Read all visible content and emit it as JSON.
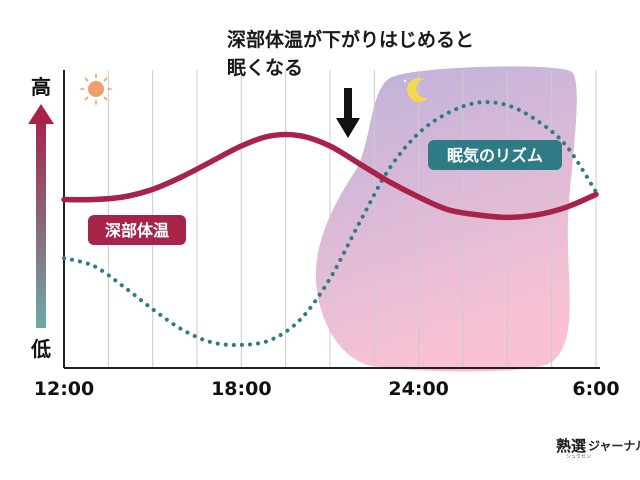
{
  "chart_data": {
    "type": "line",
    "title": "深部体温が下がりはじめると眠くなる",
    "title_lines": [
      "深部体温が下がりはじめると",
      "眠くなる"
    ],
    "x_tick_labels": [
      "12:00",
      "18:00",
      "24:00",
      "6:00"
    ],
    "x_tick_hours": [
      12,
      18,
      24,
      30
    ],
    "xlim": [
      12,
      30
    ],
    "ylim": [
      0,
      1
    ],
    "y_axis_top_label": "高",
    "y_axis_bottom_label": "低",
    "night_band_hours": [
      21,
      29.5
    ],
    "series": [
      {
        "name": "深部体温",
        "style": "solid",
        "color": "#a8234a",
        "x": [
          12,
          13,
          14,
          15,
          16,
          17,
          18,
          19,
          20,
          21,
          22,
          23,
          24,
          25,
          26,
          27,
          28,
          29,
          30
        ],
        "y": [
          0.59,
          0.59,
          0.6,
          0.63,
          0.68,
          0.74,
          0.8,
          0.84,
          0.84,
          0.8,
          0.73,
          0.66,
          0.6,
          0.55,
          0.53,
          0.52,
          0.53,
          0.56,
          0.61
        ]
      },
      {
        "name": "眠気のリズム",
        "style": "dotted",
        "color": "#2e7b86",
        "x": [
          12,
          13,
          14,
          15,
          16,
          17,
          18,
          19,
          20,
          21,
          22,
          23,
          24,
          25,
          26,
          27,
          28,
          29,
          30
        ],
        "y": [
          0.36,
          0.33,
          0.25,
          0.16,
          0.08,
          0.03,
          0.02,
          0.04,
          0.12,
          0.28,
          0.5,
          0.71,
          0.85,
          0.93,
          0.97,
          0.96,
          0.9,
          0.8,
          0.62
        ]
      }
    ],
    "arrow_hour": 21.6,
    "colors": {
      "sky_gradient_top": "#bfaed6",
      "sky_gradient_bottom": "#f7bfd3",
      "y_arrow_top": "#a8234a",
      "y_arrow_bottom": "#6fa9a8",
      "grid": "#cccccc",
      "sun": "#f0a06a",
      "moon": "#f5d94a"
    },
    "icons": [
      "sun-icon",
      "moon-icon",
      "down-arrow-icon"
    ]
  },
  "brand": {
    "main": "熟選",
    "sub": "ジャーナル",
    "reading": "シュクセン"
  }
}
